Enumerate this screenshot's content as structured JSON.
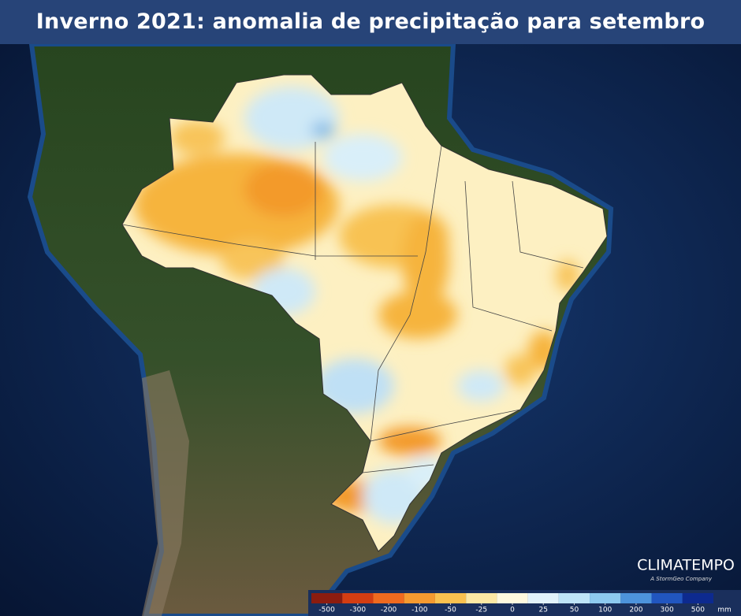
{
  "header": {
    "title": "Inverno 2021: anomalia de precipitação para setembro"
  },
  "legend": {
    "ticks": [
      -500,
      -300,
      -200,
      -100,
      -50,
      -25,
      0,
      25,
      50,
      100,
      200,
      300,
      500
    ],
    "colors": [
      "#8c1c0f",
      "#d43d12",
      "#f06a1f",
      "#f59a30",
      "#fac14f",
      "#fde8a4",
      "#fff9df",
      "#e3f3fb",
      "#bfe4f7",
      "#8dc9ef",
      "#4d93dc",
      "#2156c0",
      "#0d2a8f"
    ],
    "unit": "mm"
  },
  "brand": {
    "name": "CLIMATEMPO",
    "tagline": "A StormGeo Company"
  }
}
